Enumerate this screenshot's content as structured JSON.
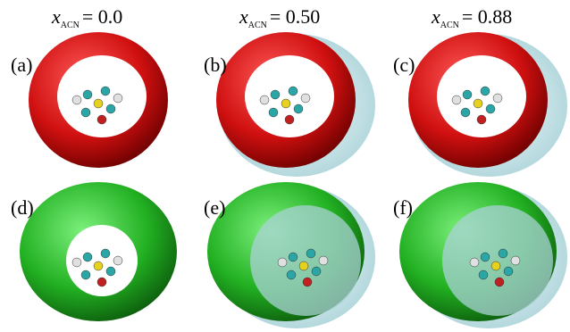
{
  "columns": [
    {
      "symbol": "x",
      "subscript": "ACN",
      "value": "= 0.0"
    },
    {
      "symbol": "x",
      "subscript": "ACN",
      "value": "= 0.50"
    },
    {
      "symbol": "x",
      "subscript": "ACN",
      "value": "= 0.88"
    }
  ],
  "panels": [
    {
      "label": "(a)"
    },
    {
      "label": "(b)"
    },
    {
      "label": "(c)"
    },
    {
      "label": "(d)"
    },
    {
      "label": "(e)"
    },
    {
      "label": "(f)"
    }
  ]
}
